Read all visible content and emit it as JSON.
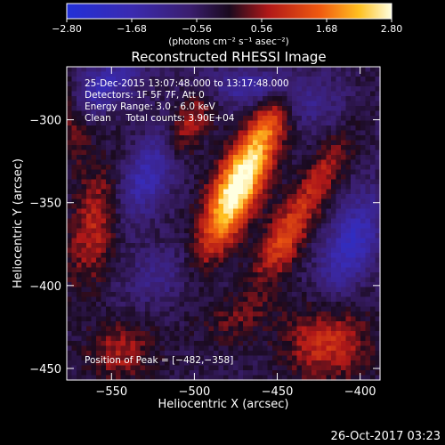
{
  "chart_data": {
    "type": "heatmap",
    "title": "Reconstructed RHESSI Image",
    "xlabel": "Heliocentric X (arcsec)",
    "ylabel": "Heliocentric Y (arcsec)",
    "xlim": [
      -577,
      -388
    ],
    "ylim": [
      -457,
      -268
    ],
    "x_ticks": [
      {
        "value": -550,
        "label": "−550"
      },
      {
        "value": -500,
        "label": "−500"
      },
      {
        "value": -450,
        "label": "−450"
      },
      {
        "value": -400,
        "label": "−400"
      }
    ],
    "y_ticks": [
      {
        "value": -300,
        "label": "−300"
      },
      {
        "value": -350,
        "label": "−350"
      },
      {
        "value": -400,
        "label": "−400"
      },
      {
        "value": -450,
        "label": "−450"
      }
    ],
    "colorbar": {
      "range": [
        -2.8,
        2.8
      ],
      "units": "(photons cm⁻² s⁻¹ asec⁻²)",
      "ticks": [
        {
          "value": -2.8,
          "label": "−2.80"
        },
        {
          "value": -1.68,
          "label": "−1.68"
        },
        {
          "value": -0.56,
          "label": "−0.56"
        },
        {
          "value": 0.56,
          "label": "0.56"
        },
        {
          "value": 1.68,
          "label": "1.68"
        },
        {
          "value": 2.8,
          "label": "2.80"
        }
      ]
    },
    "peak_position": [
      -482,
      -358
    ],
    "annotations": {
      "time_range": "25-Dec-2015 13:07:48.000 to 13:17:48.000",
      "detectors": "Detectors: 1F 5F 7F, Att 0",
      "energy_range": "Energy Range: 3.0 - 6.0 keV",
      "clean_counts": "Clean     Total counts: 3.90E+04",
      "peak": "Position of Peak = [−482,−358]"
    },
    "timestamp": "26-Oct-2017 03:23"
  }
}
